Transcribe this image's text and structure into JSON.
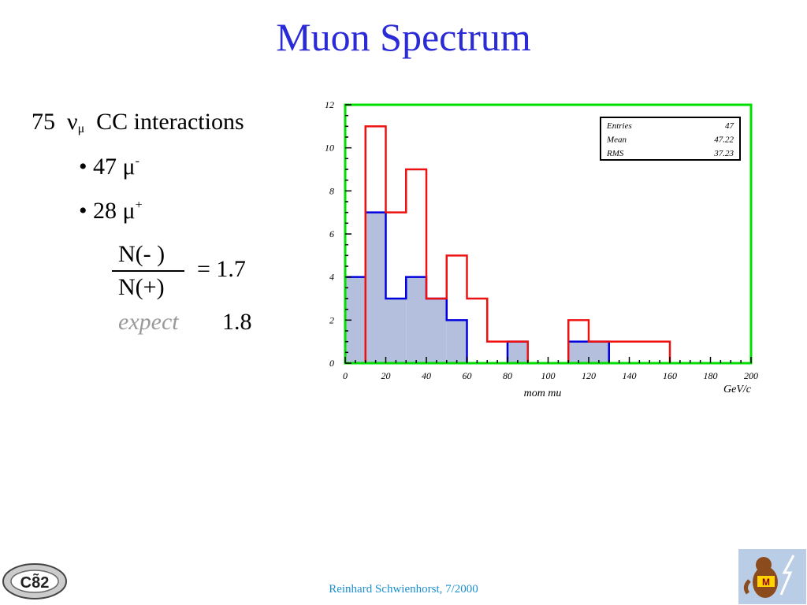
{
  "slide": {
    "title": "Muon Spectrum",
    "count": "75",
    "nu": "ν",
    "nu_sub": "μ",
    "interactions": "CC interactions",
    "bullet1_prefix": "• 47 μ",
    "bullet1_sup": "-",
    "bullet2_prefix": "• 28 μ",
    "bullet2_sup": "+",
    "numerator": "N(- )",
    "denominator": "N(+)",
    "ratio": "= 1.7",
    "expect_label": "expect",
    "expect_value": "1.8",
    "footer": "Reinhard Schwienhorst, 7/2000",
    "logo_left_text": "C8̃2",
    "colors": {
      "title": "#2a2ad6",
      "footer": "#1a8fd0"
    }
  },
  "chart_data": {
    "type": "bar",
    "xlabel": "mom mu",
    "xunit": "GeV/c",
    "xlim": [
      0,
      200
    ],
    "ylim": [
      0,
      12
    ],
    "x_ticks": [
      "0",
      "20",
      "40",
      "60",
      "80",
      "100",
      "120",
      "140",
      "160",
      "180",
      "200"
    ],
    "y_ticks": [
      "0",
      "2",
      "4",
      "6",
      "8",
      "10",
      "12"
    ],
    "bin_width": 10,
    "bin_edges": [
      0,
      10,
      20,
      30,
      40,
      50,
      60,
      70,
      80,
      90,
      100,
      110,
      120,
      130,
      140,
      150,
      160,
      170,
      180,
      190,
      200
    ],
    "series": [
      {
        "style": "filled",
        "color": "#0000dd",
        "fill": "#b3bfdd",
        "values": [
          4,
          7,
          3,
          4,
          3,
          2,
          0,
          0,
          1,
          0,
          0,
          1,
          1,
          0,
          0,
          0,
          0,
          0,
          0,
          0
        ]
      },
      {
        "style": "outline",
        "color": "#ee1111",
        "values": [
          0,
          11,
          7,
          9,
          3,
          5,
          3,
          1,
          1,
          0,
          0,
          2,
          1,
          1,
          1,
          1,
          0,
          0,
          0,
          0
        ]
      }
    ],
    "stats": [
      {
        "label": "Entries",
        "value": "47"
      },
      {
        "label": "Mean",
        "value": "47.22"
      },
      {
        "label": "RMS",
        "value": "37.23"
      }
    ],
    "frame_color": "#00dd00",
    "grid": false
  }
}
